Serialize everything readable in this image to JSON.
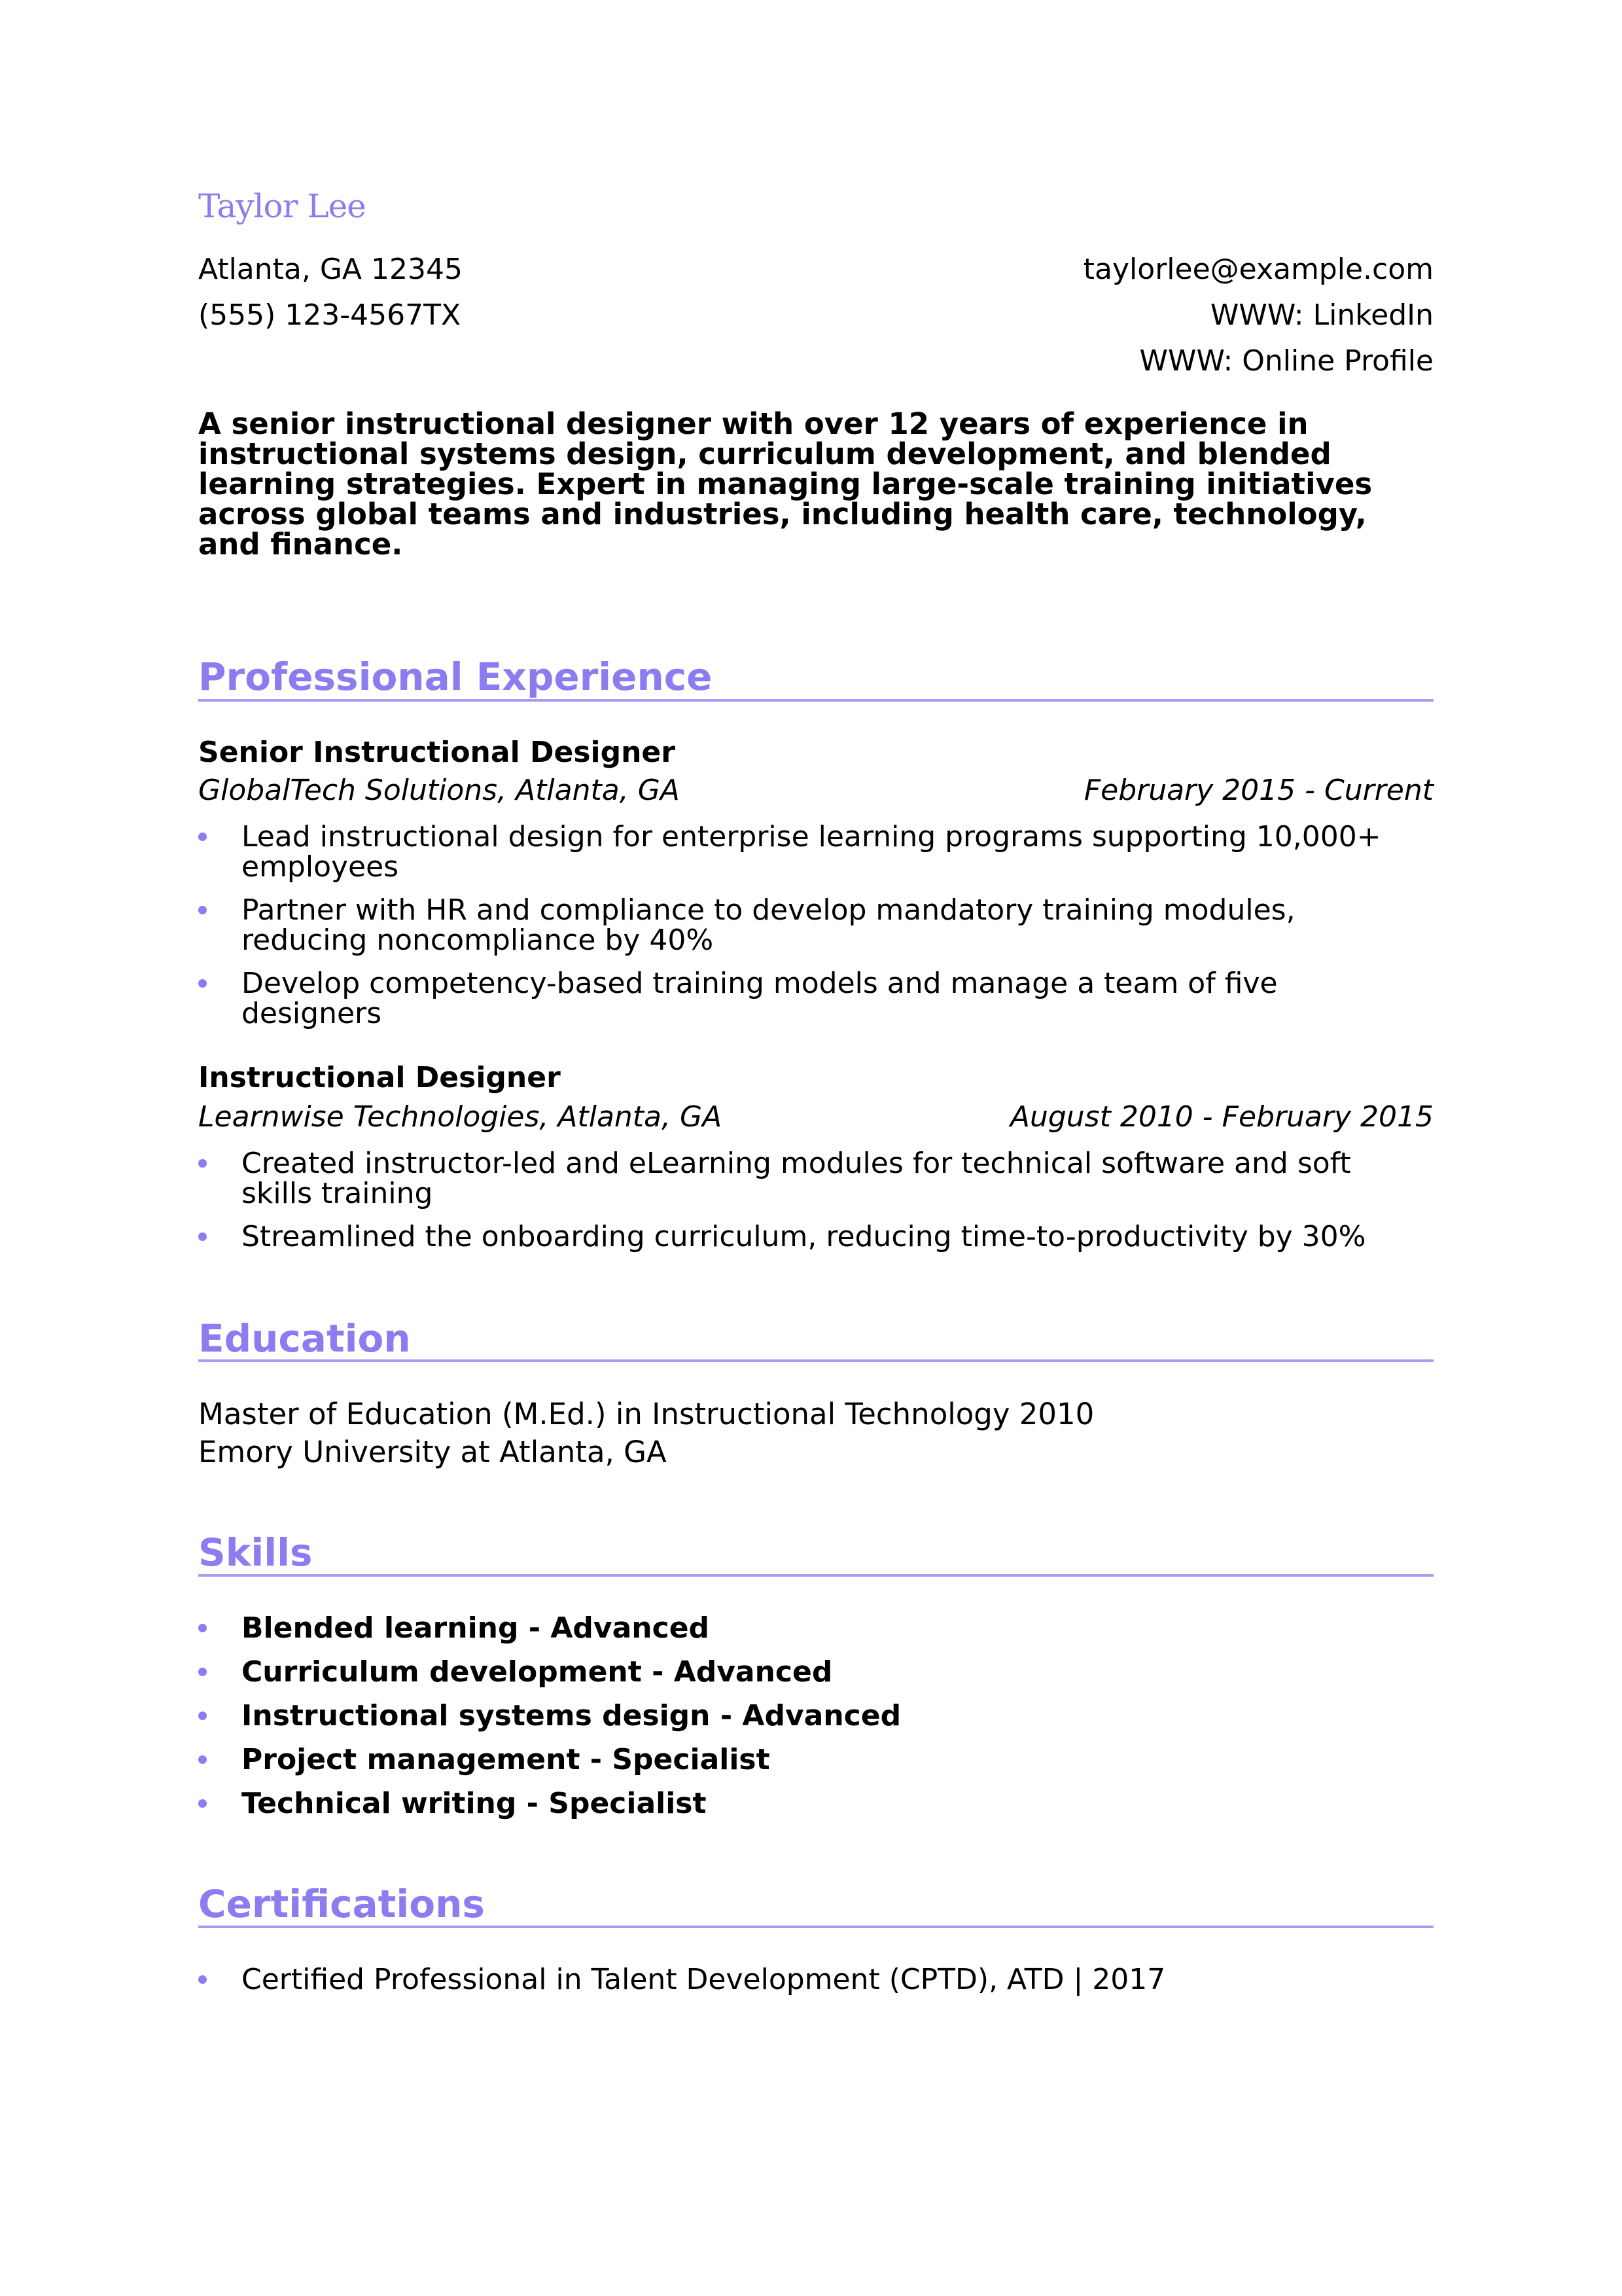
{
  "header": {
    "name": "Taylor Lee",
    "location": "Atlanta, GA 12345",
    "phone": "(555) 123-4567TX",
    "email": "taylorlee@example.com",
    "linkedin": "WWW: LinkedIn",
    "profile": "WWW: Online Profile"
  },
  "summary": "A senior instructional designer with over 12 years of experience in instructional systems design, curriculum development, and blended learning strategies. Expert in managing large-scale training initiatives across global teams and industries, including health care, technology, and finance.",
  "experience": {
    "title": "Professional Experience",
    "jobs": [
      {
        "title": "Senior Instructional Designer",
        "company": "GlobalTech Solutions, Atlanta, GA",
        "dates": "February 2015 - Current",
        "bullets": [
          "Lead instructional design for enterprise learning programs supporting 10,000+ employees",
          "Partner with HR and compliance to develop mandatory training modules, reducing noncompliance by 40%",
          "Develop competency-based training models and manage a team of five designers"
        ]
      },
      {
        "title": "Instructional Designer",
        "company": "Learnwise Technologies, Atlanta, GA",
        "dates": "August 2010 - February 2015",
        "bullets": [
          "Created instructor-led and eLearning modules for technical software and soft skills training",
          "Streamlined the onboarding curriculum, reducing time-to-productivity by 30%"
        ]
      }
    ]
  },
  "education": {
    "title": "Education",
    "degree": "Master of Education (M.Ed.) in Instructional Technology 2010",
    "school": "Emory University at Atlanta, GA"
  },
  "skills": {
    "title": "Skills",
    "items": [
      "Blended learning - Advanced",
      "Curriculum development - Advanced",
      "Instructional systems design - Advanced",
      "Project management - Specialist",
      "Technical writing - Specialist"
    ]
  },
  "certifications": {
    "title": "Certifications",
    "items": [
      "Certified Professional in Talent Development (CPTD), ATD | 2017"
    ]
  },
  "colors": {
    "accent": "#8b7cf0",
    "rule": "#a79cf2",
    "text": "#000000"
  }
}
